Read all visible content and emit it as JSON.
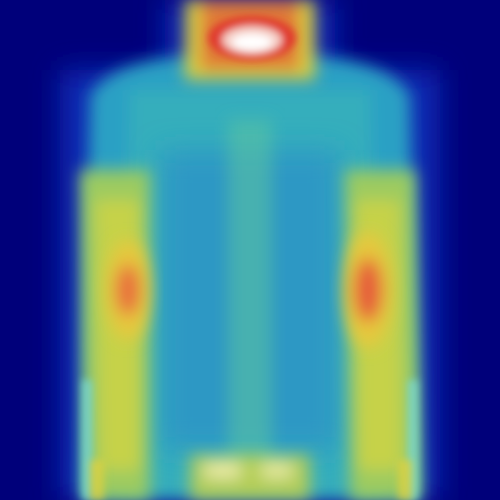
{
  "image": {
    "subject": "thermal-heatmap",
    "colormap": "jet",
    "colors": {
      "background": "#00007a",
      "cold": "#1040c8",
      "cool": "#1ea0d2",
      "teal": "#35b8b0",
      "mid": "#8cc86e",
      "warm": "#e6d23c",
      "hot": "#e65a32",
      "peak": "#ffffff"
    }
  }
}
